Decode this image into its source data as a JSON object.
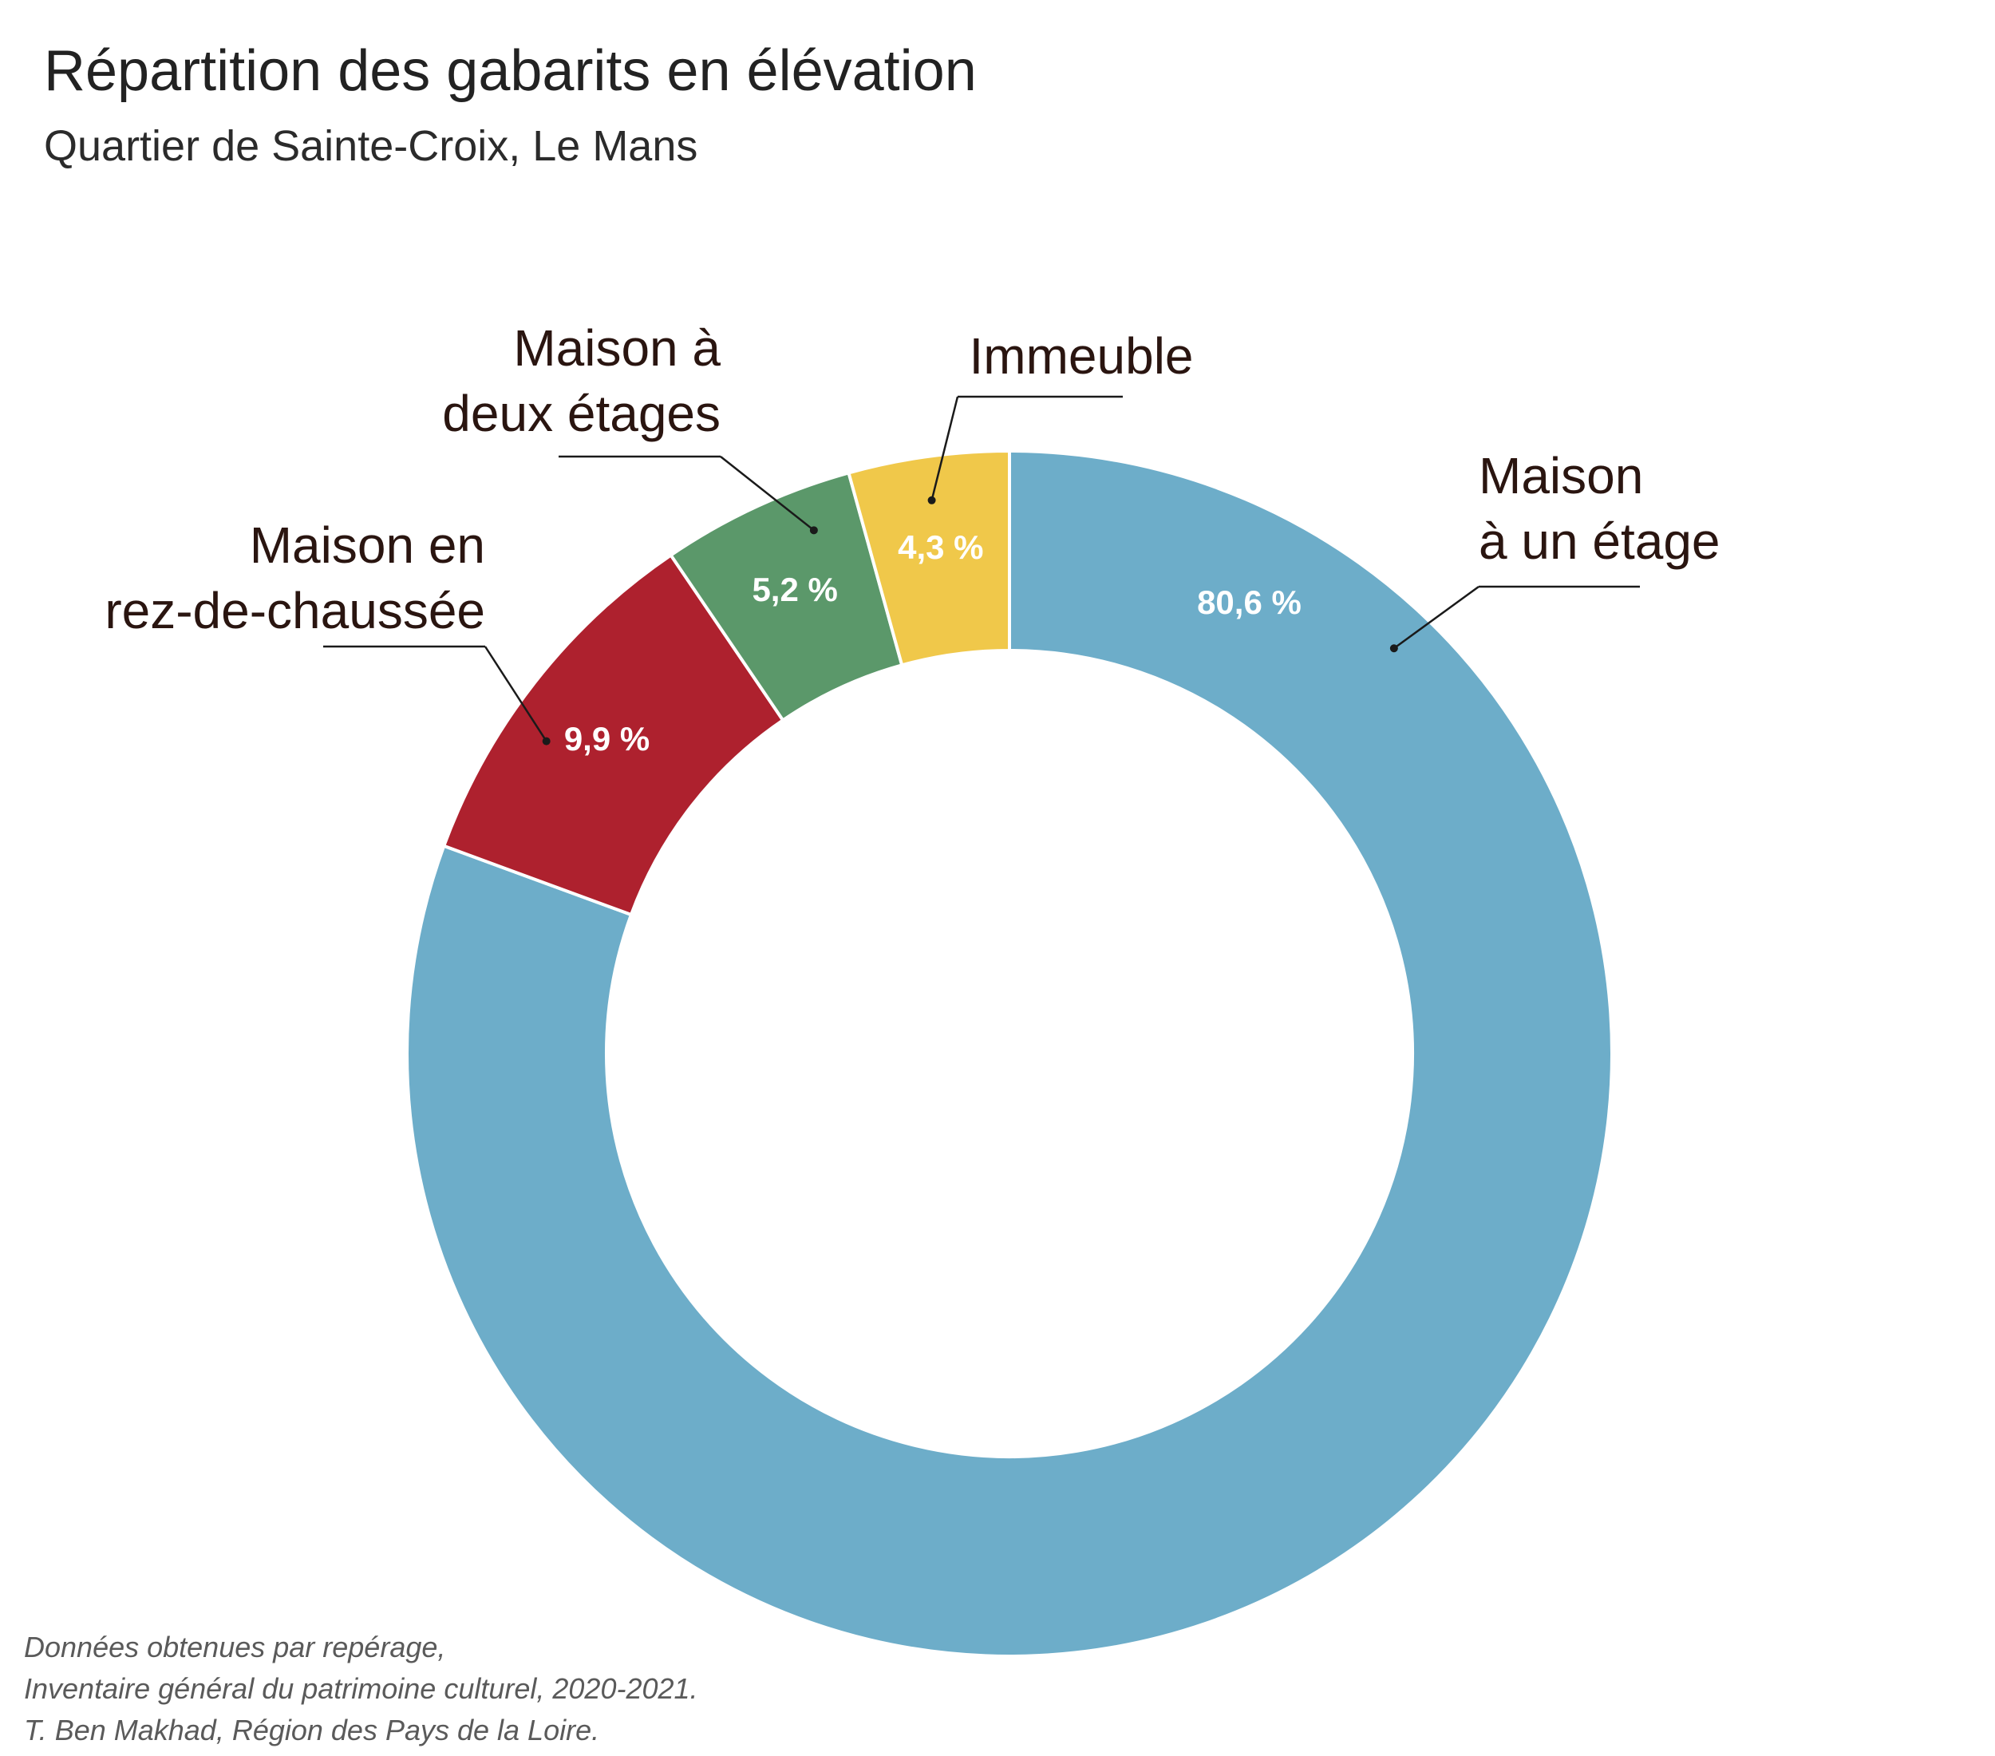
{
  "title": "Répartition des gabarits en élévation",
  "subtitle": "Quartier de Sainte-Croix, Le Mans",
  "footnote": [
    "Données obtenues par repérage,",
    "Inventaire général du patrimoine culturel, 2020-2021.",
    "T. Ben Makhad, Région des Pays de la Loire."
  ],
  "chart_data": {
    "type": "pie",
    "variant": "donut",
    "title": "Répartition des gabarits en élévation",
    "subtitle": "Quartier de Sainte-Croix, Le Mans",
    "start": "12 o'clock, clockwise",
    "slices": [
      {
        "name": "Maison à un étage",
        "label_lines": [
          "Maison",
          "à un étage"
        ],
        "value": 80.6,
        "value_label": "80,6 %",
        "color": "#6dadc9"
      },
      {
        "name": "Maison en rez-de-chaussée",
        "label_lines": [
          "Maison en",
          "rez-de-chaussée"
        ],
        "value": 9.9,
        "value_label": "9,9 %",
        "color": "#ae212e"
      },
      {
        "name": "Maison à deux étages",
        "label_lines": [
          "Maison à",
          "deux étages"
        ],
        "value": 5.2,
        "value_label": "5,2 %",
        "color": "#5b986a"
      },
      {
        "name": "Immeuble",
        "label_lines": [
          "Immeuble"
        ],
        "value": 4.3,
        "value_label": "4,3 %",
        "color": "#f0c84a"
      }
    ]
  }
}
